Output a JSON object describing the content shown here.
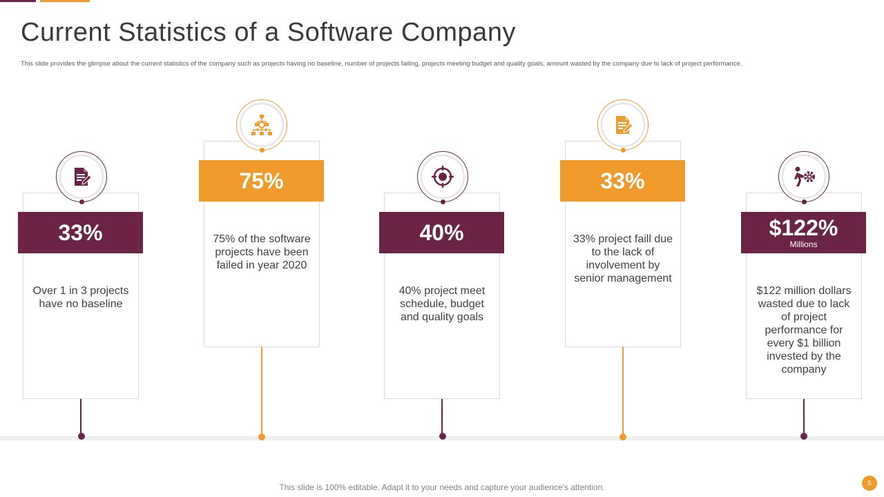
{
  "slide": {
    "title": "Current Statistics of a Software Company",
    "subtitle": "This slide provides the glimpse about the current statistics of the company such as projects having no baseline, number of projects failing, projects meeting budget and quality goals, amount wasted by the company due to lack of project performance.",
    "footer": "This slide is 100% editable. Adapt it to your needs and capture your audience's attention.",
    "page_number": "5"
  },
  "colors": {
    "purple": "#6b2346",
    "orange": "#ef9a2a"
  },
  "stats": [
    {
      "value": "33%",
      "sub": "",
      "text": "Over 1 in 3 projects have no baseline",
      "icon": "document-edit-icon",
      "color": "purple"
    },
    {
      "value": "75%",
      "sub": "",
      "text": "75% of the software projects have been failed in year 2020",
      "icon": "hierarchy-chart-icon",
      "color": "orange"
    },
    {
      "value": "40%",
      "sub": "",
      "text": "40% project meet schedule, budget and quality goals",
      "icon": "target-icon",
      "color": "purple"
    },
    {
      "value": "33%",
      "sub": "",
      "text": "33% project faill due to the lack of involvement by senior management",
      "icon": "document-edit-icon",
      "color": "orange"
    },
    {
      "value": "$122%",
      "sub": "Millions",
      "text": "$122 million dollars wasted due to lack of project performance for every $1 billion invested by the company",
      "icon": "person-pushing-gear-icon",
      "color": "purple"
    }
  ]
}
